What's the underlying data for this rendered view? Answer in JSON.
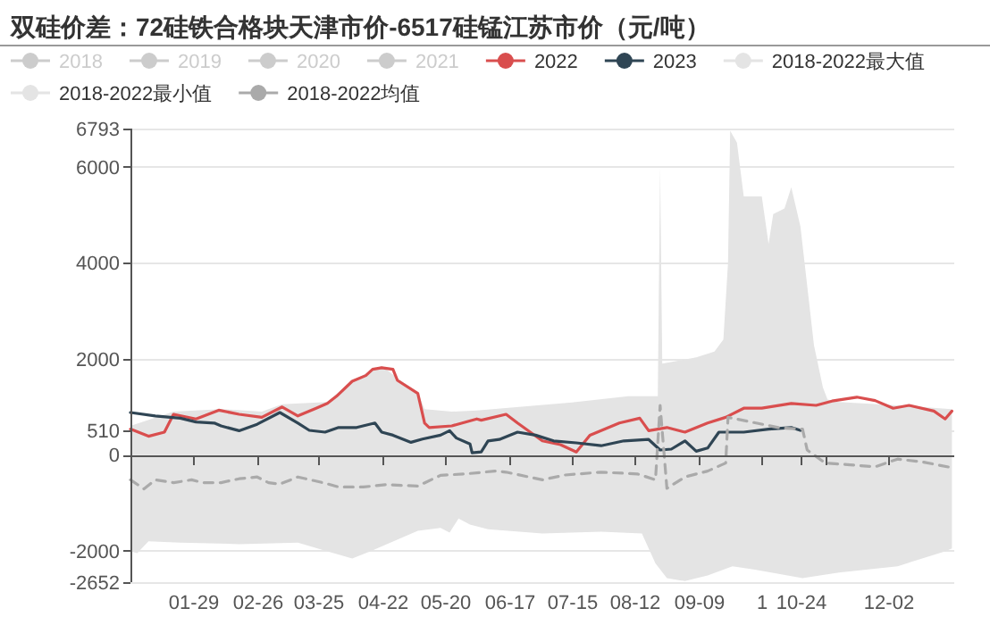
{
  "chart_data": {
    "type": "line",
    "title": "双硅价差：72硅铁合格块天津市价-6517硅锰江苏市价（元/吨）",
    "xlim": [
      "--01-01",
      "--12-31"
    ],
    "xticks": [
      {
        "value": "--01-29",
        "label": "01-29"
      },
      {
        "value": "--02-26",
        "label": "02-26"
      },
      {
        "value": "--03-25",
        "label": "03-25"
      },
      {
        "value": "--04-22",
        "label": "04-22"
      },
      {
        "value": "--05-20",
        "label": "05-20"
      },
      {
        "value": "--06-17",
        "label": "06-17"
      },
      {
        "value": "--07-15",
        "label": "07-15"
      },
      {
        "value": "--08-12",
        "label": "08-12"
      },
      {
        "value": "--09-09",
        "label": "09-09"
      },
      {
        "value": "--10-07",
        "label": "1"
      },
      {
        "value": "--10-24",
        "label": "10-24"
      },
      {
        "value": "--11-04",
        "label": null
      },
      {
        "value": "--12-02",
        "label": "12-02"
      }
    ],
    "ylim": [
      -2652,
      6793
    ],
    "yticks": [
      -2652,
      -2000,
      0,
      {
        "value": 510,
        "label": "510"
      },
      2000,
      4000,
      6000,
      6793
    ],
    "grid": "y",
    "legend": "top",
    "series": [
      {
        "name": "2018",
        "color": "#cccccc"
      },
      {
        "name": "2019",
        "color": "#cccccc"
      },
      {
        "name": "2020",
        "color": "#cccccc"
      },
      {
        "name": "2021",
        "color": "#cccccc"
      },
      {
        "name": "2022",
        "color": "#d94e4e",
        "x": [
          "--01-01",
          "--01-09",
          "--01-16",
          "--01-20",
          "--01-30",
          "--02-09",
          "--02-18",
          "--02-28",
          "--03-09",
          "--03-16",
          "--03-24",
          "--03-29",
          "--04-02",
          "--04-09",
          "--04-15",
          "--04-18",
          "--04-22",
          "--04-27",
          "--04-29",
          "--05-08",
          "--05-11",
          "--05-13",
          "--05-23",
          "--06-03",
          "--06-05",
          "--06-16",
          "--06-21",
          "--07-02",
          "--07-10",
          "--07-17",
          "--07-23",
          "--08-05",
          "--08-14",
          "--08-18",
          "--08-26",
          "--09-03",
          "--09-13",
          "--09-21",
          "--09-29",
          "--10-07",
          "--10-20",
          "--10-31",
          "--11-07",
          "--11-18",
          "--11-26",
          "--12-04",
          "--12-11",
          "--12-22",
          "--12-27",
          "--12-30"
        ],
        "values": [
          535,
          385,
          470,
          845,
          745,
          930,
          845,
          780,
          995,
          810,
          970,
          1070,
          1220,
          1530,
          1650,
          1780,
          1815,
          1780,
          1550,
          1280,
          660,
          570,
          600,
          745,
          720,
          845,
          660,
          290,
          210,
          60,
          410,
          660,
          760,
          500,
          570,
          470,
          660,
          780,
          970,
          970,
          1070,
          1030,
          1120,
          1200,
          1130,
          970,
          1030,
          910,
          745,
          910
        ]
      },
      {
        "name": "2023",
        "color": "#2f4554",
        "x": [
          "--01-01",
          "--01-12",
          "--01-23",
          "--01-30",
          "--02-07",
          "--02-10",
          "--02-18",
          "--02-26",
          "--03-08",
          "--03-16",
          "--03-21",
          "--03-28",
          "--04-03",
          "--04-11",
          "--04-19",
          "--04-22",
          "--04-27",
          "--05-05",
          "--05-10",
          "--05-18",
          "--05-22",
          "--05-25",
          "--05-31",
          "--06-01",
          "--06-05",
          "--06-08",
          "--06-13",
          "--06-21",
          "--06-29",
          "--07-07",
          "--07-17",
          "--07-28",
          "--08-07",
          "--08-18",
          "--08-23",
          "--08-28",
          "--09-03",
          "--09-08",
          "--09-13",
          "--09-18",
          "--09-29",
          "--10-10",
          "--10-20",
          "--10-24"
        ],
        "values": [
          880,
          810,
          760,
          685,
          660,
          600,
          500,
          635,
          880,
          660,
          510,
          470,
          570,
          570,
          660,
          470,
          410,
          260,
          325,
          410,
          500,
          350,
          225,
          40,
          60,
          290,
          320,
          470,
          410,
          290,
          250,
          190,
          290,
          320,
          100,
          120,
          290,
          75,
          140,
          470,
          470,
          535,
          570,
          510
        ]
      },
      {
        "name": "2018-2022最大值",
        "type": "area",
        "color": "#e4e4e4",
        "x": [
          "--01-01",
          "--01-20",
          "--02-10",
          "--02-28",
          "--03-09",
          "--03-29",
          "--04-09",
          "--04-22",
          "--04-29",
          "--05-08",
          "--05-11",
          "--05-23",
          "--06-03",
          "--07-15",
          "--08-09",
          "--08-22",
          "--08-23",
          "--08-24",
          "--08-31",
          "--09-08",
          "--09-16",
          "--09-20",
          "--09-22",
          "--09-23",
          "--09-26",
          "--09-29",
          "--10-07",
          "--10-10",
          "--10-12",
          "--10-17",
          "--10-20",
          "--10-24",
          "--10-27",
          "--10-30",
          "--11-03",
          "--11-05",
          "--11-10",
          "--12-06",
          "--12-30"
        ],
        "values": [
          600,
          900,
          950,
          900,
          1050,
          1100,
          1550,
          1850,
          1600,
          1300,
          950,
          900,
          920,
          1090,
          1220,
          1220,
          6000,
          1900,
          1960,
          2030,
          2150,
          2400,
          4000,
          6750,
          6500,
          5380,
          5380,
          4390,
          5010,
          5130,
          5570,
          4760,
          3520,
          2280,
          1400,
          1150,
          1100,
          1030,
          950
        ]
      },
      {
        "name": "2018-2022最小值",
        "type": "area",
        "color": "#e4e4e4",
        "x": [
          "--01-01",
          "--01-04",
          "--01-09",
          "--01-23",
          "--02-18",
          "--03-16",
          "--03-29",
          "--04-09",
          "--04-17",
          "--05-08",
          "--05-18",
          "--05-22",
          "--05-26",
          "--05-31",
          "--06-08",
          "--07-02",
          "--07-28",
          "--08-15",
          "--08-21",
          "--08-26",
          "--09-03",
          "--09-13",
          "--09-24",
          "--10-04",
          "--10-25",
          "--11-10",
          "--12-06",
          "--12-27",
          "--12-30"
        ],
        "values": [
          -2010,
          -2050,
          -1800,
          -1830,
          -1860,
          -1830,
          -2010,
          -2160,
          -2010,
          -1580,
          -1520,
          -1620,
          -1330,
          -1450,
          -1550,
          -1640,
          -1600,
          -1640,
          -2260,
          -2570,
          -2630,
          -2510,
          -2320,
          -2390,
          -2570,
          -2450,
          -2320,
          -2010,
          -1950
        ]
      },
      {
        "name": "2018-2022均值",
        "color": "#aaaaaa",
        "line_style": "dashed",
        "x": [
          "--01-01",
          "--01-07",
          "--01-12",
          "--01-20",
          "--01-28",
          "--02-02",
          "--02-10",
          "--02-18",
          "--02-26",
          "--03-03",
          "--03-08",
          "--03-16",
          "--03-27",
          "--04-03",
          "--04-14",
          "--04-24",
          "--05-08",
          "--05-18",
          "--05-29",
          "--06-11",
          "--06-16",
          "--07-02",
          "--07-12",
          "--07-28",
          "--08-13",
          "--08-21",
          "--08-23",
          "--08-26",
          "--09-03",
          "--09-13",
          "--09-21",
          "--09-22",
          "--10-15",
          "--10-25",
          "--10-27",
          "--11-04",
          "--11-15",
          "--11-26",
          "--12-06",
          "--12-17",
          "--12-30"
        ],
        "values": [
          -520,
          -710,
          -520,
          -580,
          -520,
          -580,
          -580,
          -500,
          -460,
          -580,
          -610,
          -460,
          -580,
          -670,
          -670,
          -620,
          -650,
          -430,
          -400,
          -340,
          -360,
          -520,
          -420,
          -360,
          -400,
          -520,
          1030,
          -700,
          -460,
          -340,
          -170,
          780,
          560,
          535,
          100,
          -170,
          -210,
          -250,
          -90,
          -150,
          -270
        ]
      }
    ]
  }
}
